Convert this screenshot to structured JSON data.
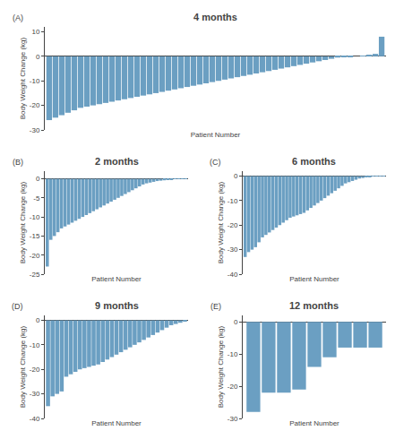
{
  "chart_data": [
    {
      "type": "bar",
      "title": "4 months",
      "annotation": "(A)",
      "ylabel": "Body Weight Change (kg)",
      "xlabel": "Patient Number",
      "color": "#6b9fc2",
      "ylim": [
        -30,
        12
      ],
      "yticks": [
        -30,
        -20,
        -10,
        0,
        10
      ],
      "grid": false,
      "tick_labels": "y",
      "values": [
        -26,
        -25,
        -24,
        -23,
        -22,
        -21,
        -20.5,
        -20,
        -19.5,
        -19,
        -18.5,
        -18,
        -17.5,
        -17,
        -16.5,
        -16,
        -15.5,
        -15,
        -14.5,
        -14,
        -13.5,
        -13,
        -12.5,
        -12,
        -11.5,
        -11,
        -10.5,
        -10,
        -9.5,
        -9,
        -8.5,
        -8,
        -7.5,
        -7,
        -6.5,
        -6,
        -5.5,
        -5,
        -4.5,
        -4,
        -3.5,
        -3,
        -2.5,
        -2,
        -1.5,
        -1,
        -0.5,
        -0.3,
        -0.1,
        0,
        0.2,
        0.5,
        1,
        8
      ]
    },
    {
      "type": "bar",
      "title": "2 months",
      "annotation": "(B)",
      "ylabel": "Body Weight Change (kg)",
      "xlabel": "Patient Number",
      "color": "#6b9fc2",
      "ylim": [
        -25,
        2
      ],
      "yticks": [
        -25,
        -20,
        -15,
        -10,
        -5,
        0
      ],
      "grid": false,
      "tick_labels": "y",
      "values": [
        -23,
        -16,
        -15,
        -14,
        -13,
        -12.5,
        -12,
        -11.5,
        -11,
        -10.5,
        -10,
        -9.5,
        -9,
        -8.5,
        -8,
        -7.5,
        -7,
        -6.5,
        -6,
        -5.5,
        -5,
        -4.5,
        -4,
        -3.5,
        -3,
        -2.5,
        -2,
        -1.5,
        -1.2,
        -1,
        -0.8,
        -0.6,
        -0.5,
        -0.4,
        -0.3,
        -0.2,
        -0.1,
        -0.05,
        -0.02,
        -0.01
      ]
    },
    {
      "type": "bar",
      "title": "6 months",
      "annotation": "(C)",
      "ylabel": "Body Weight Change (kg)",
      "xlabel": "Patient Number",
      "color": "#6b9fc2",
      "ylim": [
        -40,
        2
      ],
      "yticks": [
        -40,
        -30,
        -20,
        -10,
        0
      ],
      "grid": false,
      "tick_labels": "y",
      "values": [
        -33,
        -31,
        -30,
        -29,
        -27,
        -25,
        -24,
        -23,
        -22,
        -21,
        -20,
        -19,
        -18,
        -17,
        -16.5,
        -16,
        -15.5,
        -15,
        -14,
        -13,
        -12,
        -11,
        -10,
        -9,
        -8,
        -7,
        -6,
        -5,
        -4,
        -3,
        -2.5,
        -2,
        -1.5,
        -1,
        -0.8,
        -0.5,
        -0.3,
        -0.1,
        -0.05,
        -0.02,
        -0.01
      ]
    },
    {
      "type": "bar",
      "title": "9 months",
      "annotation": "(D)",
      "ylabel": "Body Weight Change (kg)",
      "xlabel": "Patient Number",
      "color": "#6b9fc2",
      "ylim": [
        -40,
        2
      ],
      "yticks": [
        -40,
        -30,
        -20,
        -10,
        0
      ],
      "grid": false,
      "tick_labels": "y",
      "values": [
        -35,
        -31,
        -30,
        -29,
        -23,
        -22,
        -21,
        -20,
        -19.5,
        -19,
        -18.5,
        -18,
        -17,
        -16,
        -15,
        -14,
        -13,
        -12,
        -11,
        -10,
        -9,
        -8,
        -7,
        -6,
        -5,
        -4,
        -3,
        -2,
        -1.5,
        -1,
        -0.5
      ]
    },
    {
      "type": "bar",
      "title": "12 months",
      "annotation": "(E)",
      "ylabel": "Body Weight Change (kg)",
      "xlabel": "Patient Number",
      "color": "#6b9fc2",
      "ylim": [
        -30,
        2
      ],
      "yticks": [
        -30,
        -20,
        -10,
        0
      ],
      "grid": false,
      "tick_labels": "y",
      "values": [
        -28,
        -22,
        -22,
        -21,
        -14,
        -11,
        -8,
        -8,
        -8
      ]
    }
  ]
}
